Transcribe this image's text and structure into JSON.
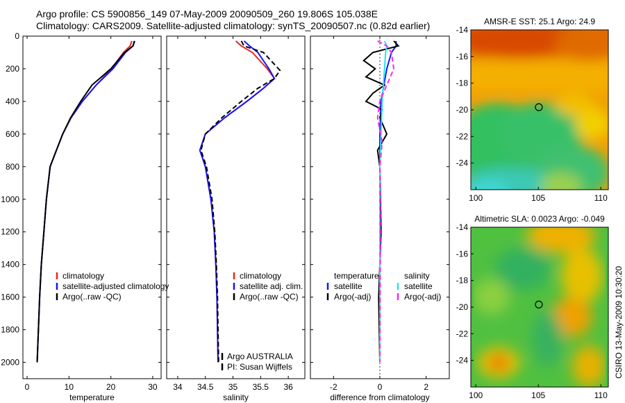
{
  "titles": {
    "line1": "Argo profile: CS 5900856_149 07-May-2009 20090509_260 19.806S 105.038E",
    "line2": "Climatology: CARS2009. Satellite-adjusted climatology: synTS_20090507.nc (0.82d earlier)"
  },
  "credit": "CSIRO 13-May-2009 10:30:20",
  "colors": {
    "climatology": "#e8251e",
    "satellite": "#1414ff",
    "argo": "#000000",
    "cyan": "#22e6ee",
    "magenta": "#ff22ff"
  },
  "chart_data": [
    {
      "id": "temperature",
      "type": "line",
      "xlabel": "temperature",
      "xlim": [
        -1,
        32
      ],
      "ylim": [
        2100,
        0
      ],
      "yaxis_reversed": true,
      "xticks": [
        0,
        10,
        20,
        30
      ],
      "yticks": [
        0,
        200,
        400,
        600,
        800,
        1000,
        1200,
        1400,
        1600,
        1800,
        2000
      ],
      "legend": {
        "position": "lower-right",
        "entries": [
          "climatology",
          "satellite-adjusted climatology",
          "Argo(..raw -QC)"
        ]
      },
      "annotations": [],
      "series": [
        {
          "name": "climatology",
          "color_key": "climatology",
          "dashed": false,
          "x": [
            25.0,
            24.6,
            23.0,
            20.2,
            16.5,
            13.2,
            10.5,
            8.5,
            7.0,
            5.5,
            4.6,
            4.0,
            3.4,
            3.0,
            2.7,
            2.4
          ],
          "y": [
            30,
            60,
            100,
            200,
            300,
            400,
            500,
            600,
            700,
            800,
            1000,
            1200,
            1400,
            1600,
            1800,
            2000
          ]
        },
        {
          "name": "satellite-adjusted climatology",
          "color_key": "satellite",
          "dashed": false,
          "x": [
            25.7,
            25.3,
            23.5,
            20.5,
            16.5,
            13.2,
            10.5,
            8.5,
            7.0,
            5.5,
            4.6,
            4.0,
            3.4,
            3.0,
            2.7,
            2.4
          ],
          "y": [
            30,
            60,
            100,
            200,
            300,
            400,
            500,
            600,
            700,
            800,
            1000,
            1200,
            1400,
            1600,
            1800,
            2000
          ]
        },
        {
          "name": "Argo(..raw -QC)",
          "color_key": "argo",
          "dashed": false,
          "x": [
            25.6,
            25.3,
            23.3,
            20.0,
            15.5,
            12.8,
            10.4,
            8.5,
            7.0,
            5.5,
            4.6,
            4.0,
            3.4,
            3.0,
            2.7,
            2.4
          ],
          "y": [
            30,
            60,
            100,
            200,
            300,
            400,
            500,
            600,
            700,
            800,
            1000,
            1200,
            1400,
            1600,
            1800,
            2000
          ]
        }
      ]
    },
    {
      "id": "salinity",
      "type": "line",
      "xlabel": "salinity",
      "xlim": [
        33.8,
        36.3
      ],
      "ylim": [
        2100,
        0
      ],
      "yaxis_reversed": true,
      "xticks": [
        34,
        34.5,
        35,
        35.5,
        36
      ],
      "xtick_labels": [
        "34",
        "34.5",
        "35",
        "35.5",
        "36"
      ],
      "yticks": [
        0,
        200,
        400,
        600,
        800,
        1000,
        1200,
        1400,
        1600,
        1800,
        2000
      ],
      "legend": {
        "position": "lower-right",
        "entries": [
          "climatology",
          "satellite adj. clim.",
          "Argo(..raw -QC)"
        ]
      },
      "annotations": [
        "Argo AUSTRALIA",
        "PI: Susan Wijffels"
      ],
      "series": [
        {
          "name": "climatology",
          "color_key": "climatology",
          "dashed": false,
          "x": [
            35.05,
            35.15,
            35.35,
            35.62,
            35.75,
            35.55,
            35.25,
            34.85,
            34.5,
            34.4,
            34.5,
            34.6,
            34.66,
            34.69,
            34.71,
            34.72,
            34.73
          ],
          "y": [
            30,
            60,
            100,
            200,
            260,
            320,
            400,
            500,
            600,
            700,
            800,
            1000,
            1200,
            1400,
            1600,
            1800,
            2000
          ]
        },
        {
          "name": "satellite adj. clim.",
          "color_key": "satellite",
          "dashed": false,
          "x": [
            35.2,
            35.3,
            35.45,
            35.65,
            35.75,
            35.55,
            35.25,
            34.85,
            34.5,
            34.4,
            34.5,
            34.6,
            34.66,
            34.69,
            34.71,
            34.72,
            34.73
          ],
          "y": [
            30,
            60,
            100,
            200,
            260,
            320,
            400,
            500,
            600,
            700,
            800,
            1000,
            1200,
            1400,
            1600,
            1800,
            2000
          ]
        },
        {
          "name": "Argo(..raw -QC)",
          "color_key": "argo",
          "dashed": true,
          "x": [
            35.15,
            35.2,
            35.55,
            35.85,
            35.75,
            35.45,
            35.15,
            34.8,
            34.5,
            34.42,
            34.52,
            34.62,
            34.67,
            34.7,
            34.72,
            34.73,
            34.74
          ],
          "y": [
            30,
            60,
            100,
            210,
            260,
            320,
            400,
            500,
            600,
            700,
            800,
            1000,
            1200,
            1400,
            1600,
            1800,
            2000
          ]
        }
      ]
    },
    {
      "id": "difference",
      "type": "line",
      "xlabel": "difference from climatology",
      "xlim": [
        -3,
        3
      ],
      "ylim": [
        2100,
        0
      ],
      "yaxis_reversed": true,
      "xticks": [
        -2,
        0,
        2
      ],
      "yticks": [
        0,
        200,
        400,
        600,
        800,
        1000,
        1200,
        1400,
        1600,
        1800,
        2000
      ],
      "legend_columns": [
        {
          "header": "temperature",
          "entries": [
            "satellite",
            "Argo(-adj)"
          ]
        },
        {
          "header": "salinity",
          "entries": [
            "satellite",
            "Argo(-adj)"
          ]
        }
      ],
      "annotations": [],
      "series": [
        {
          "name": "temperature satellite",
          "color_key": "satellite",
          "dashed": false,
          "x": [
            0.7,
            0.7,
            0.5,
            0.3,
            0.05,
            0.0,
            0.0,
            0.0,
            0.0,
            0.0
          ],
          "y": [
            30,
            60,
            100,
            200,
            400,
            600,
            800,
            1200,
            1600,
            2000
          ]
        },
        {
          "name": "temperature Argo(-adj)",
          "color_key": "argo",
          "dashed": false,
          "x": [
            0.6,
            0.8,
            -0.3,
            -0.7,
            -0.2,
            -0.6,
            0.2,
            -0.3,
            -0.6,
            0.1,
            0.0,
            0.3,
            0.1,
            -0.1,
            0.0,
            0.05,
            -0.05,
            0.0
          ],
          "y": [
            30,
            60,
            100,
            150,
            200,
            250,
            300,
            350,
            400,
            450,
            500,
            600,
            650,
            700,
            800,
            1200,
            1600,
            2000
          ]
        },
        {
          "name": "salinity satellite",
          "color_key": "cyan",
          "dashed": false,
          "x": [
            0.2,
            0.3,
            0.25,
            0.2,
            0.1,
            0.05,
            0.0,
            0.0,
            0.0,
            0.0
          ],
          "y": [
            30,
            60,
            100,
            200,
            400,
            600,
            800,
            1200,
            1600,
            2000
          ]
        },
        {
          "name": "salinity Argo(-adj)",
          "color_key": "magenta",
          "dashed": true,
          "x": [
            -0.1,
            0.3,
            0.5,
            0.6,
            0.3,
            0.0,
            -0.1,
            0.1,
            0.0,
            0.02,
            0.0
          ],
          "y": [
            30,
            60,
            100,
            200,
            300,
            400,
            500,
            650,
            800,
            1200,
            2000
          ]
        }
      ]
    }
  ],
  "maps": [
    {
      "id": "sst",
      "title": "AMSR-E SST: 25.1 Argo: 24.9",
      "xticks": [
        100,
        105,
        110
      ],
      "yticks": [
        -14,
        -16,
        -18,
        -20,
        -22,
        -24
      ],
      "xlim": [
        99.6,
        110.6
      ],
      "ylim": [
        -26,
        -14
      ],
      "marker": {
        "lon": 105.038,
        "lat": -19.806
      }
    },
    {
      "id": "sla",
      "title": "Altimetric SLA: 0.0023 Argo: -0.049",
      "xticks": [
        100,
        105,
        110
      ],
      "yticks": [
        -14,
        -16,
        -18,
        -20,
        -22,
        -24
      ],
      "xlim": [
        99.6,
        110.6
      ],
      "ylim": [
        -26,
        -14
      ],
      "marker": {
        "lon": 105.038,
        "lat": -19.806
      }
    }
  ]
}
